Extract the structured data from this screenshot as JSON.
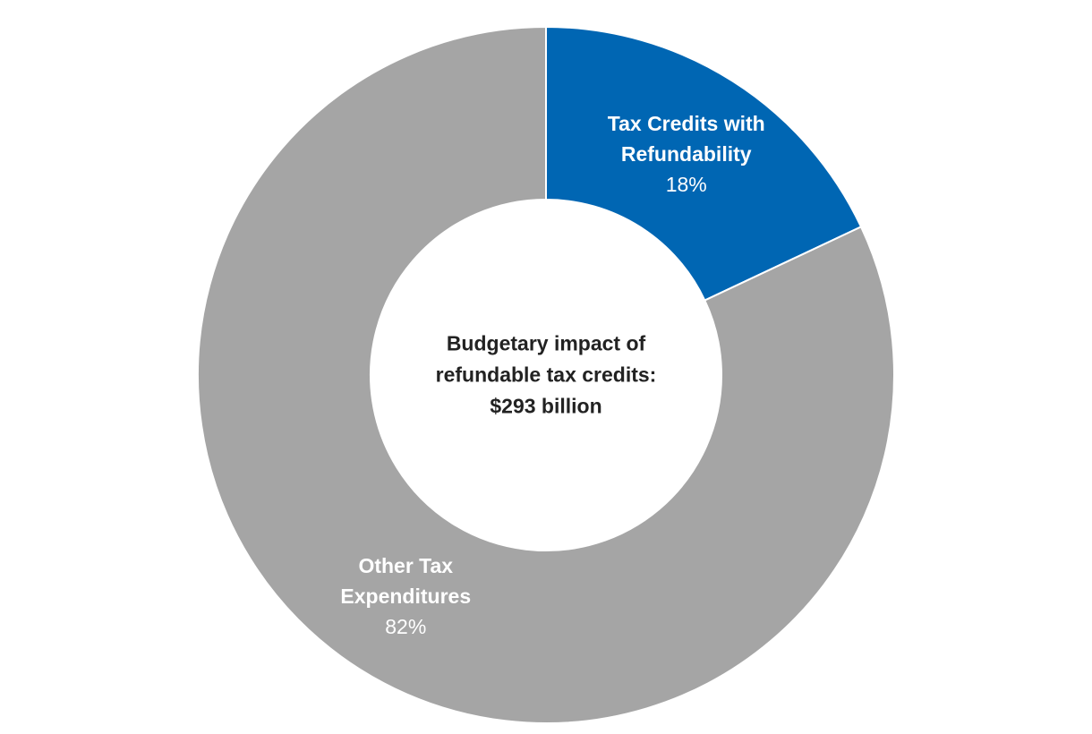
{
  "chart_data": {
    "type": "pie",
    "donut": true,
    "categories": [
      "Tax Credits with Refundability",
      "Other Tax Expenditures"
    ],
    "values": [
      18,
      82
    ],
    "value_labels": [
      "18%",
      "82%"
    ],
    "colors": [
      "#0066b3",
      "#a5a5a5"
    ],
    "center_text": [
      "Budgetary impact of",
      "refundable tax credits:",
      "$293 billion"
    ]
  }
}
